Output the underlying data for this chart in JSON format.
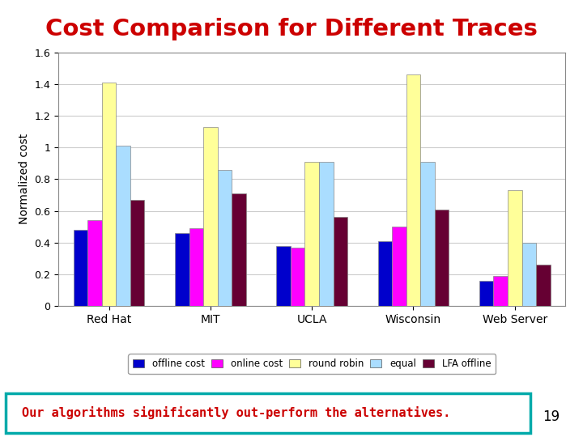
{
  "title": "Cost Comparison for Different Traces",
  "title_color": "#cc0000",
  "ylabel": "Normalized cost",
  "categories": [
    "Red Hat",
    "MIT",
    "UCLA",
    "Wisconsin",
    "Web Server"
  ],
  "series": {
    "offline cost": [
      0.48,
      0.46,
      0.38,
      0.41,
      0.16
    ],
    "online cost": [
      0.54,
      0.49,
      0.37,
      0.5,
      0.19
    ],
    "round robin": [
      1.41,
      1.13,
      0.91,
      1.46,
      0.73
    ],
    "equal": [
      1.01,
      0.86,
      0.91,
      0.91,
      0.4
    ],
    "LFA offline": [
      0.67,
      0.71,
      0.56,
      0.61,
      0.26
    ]
  },
  "colors": {
    "offline cost": "#0000cc",
    "online cost": "#ff00ff",
    "round robin": "#ffff99",
    "equal": "#aaddff",
    "LFA offline": "#660033"
  },
  "ylim": [
    0,
    1.6
  ],
  "yticks": [
    0,
    0.2,
    0.4,
    0.6,
    0.8,
    1.0,
    1.2,
    1.4,
    1.6
  ],
  "bottom_text": "Our algorithms significantly out-perform the alternatives.",
  "bottom_text_color": "#cc0000",
  "bottom_box_color": "#00aaaa",
  "page_number": "19",
  "background_color": "#ffffff",
  "plot_bg_color": "#ffffff",
  "bar_edge_color": "#888888",
  "grid_color": "#cccccc"
}
